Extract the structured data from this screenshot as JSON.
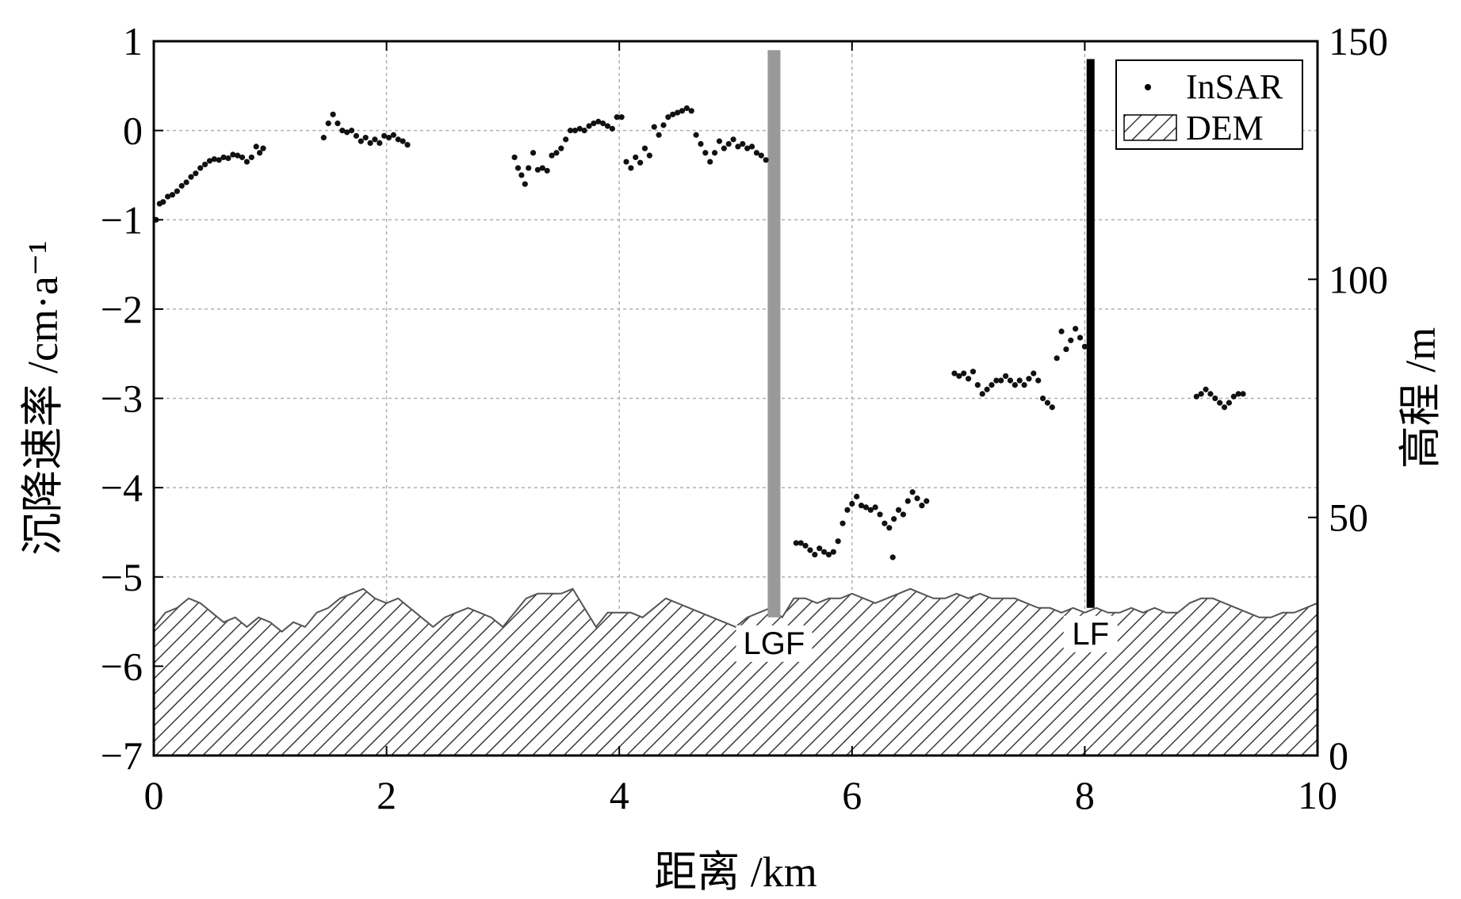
{
  "chart_data": {
    "type": "scatter",
    "xlabel": "距离 /km",
    "ylabel_left": "沉降速率 /cm·a⁻¹",
    "ylabel_right": "高程 /m",
    "xlim": [
      0,
      10
    ],
    "ylim_left": [
      -7,
      1
    ],
    "ylim_right": [
      0,
      150
    ],
    "x_ticks": [
      "0",
      "2",
      "4",
      "6",
      "8",
      "10"
    ],
    "y_left_ticks": [
      "1",
      "0",
      "−1",
      "−2",
      "−3",
      "−4",
      "−5",
      "−6",
      "−7"
    ],
    "y_right_ticks": [
      "150",
      "100",
      "50",
      "0"
    ],
    "grid": true,
    "legend": {
      "position": "top-right",
      "entries": [
        "InSAR",
        "DEM"
      ]
    },
    "faults": [
      {
        "label": "LGF",
        "x": 5.33,
        "top": 0.9,
        "color": "#999999"
      },
      {
        "label": "LF",
        "x": 8.05,
        "top": 0.8,
        "color": "#000000"
      }
    ],
    "series": [
      {
        "name": "InSAR",
        "type": "scatter",
        "points": [
          [
            0.02,
            -1.0
          ],
          [
            0.05,
            -0.82
          ],
          [
            0.08,
            -0.8
          ],
          [
            0.12,
            -0.74
          ],
          [
            0.16,
            -0.72
          ],
          [
            0.2,
            -0.68
          ],
          [
            0.24,
            -0.62
          ],
          [
            0.28,
            -0.58
          ],
          [
            0.32,
            -0.52
          ],
          [
            0.36,
            -0.48
          ],
          [
            0.4,
            -0.42
          ],
          [
            0.44,
            -0.38
          ],
          [
            0.48,
            -0.34
          ],
          [
            0.52,
            -0.32
          ],
          [
            0.56,
            -0.33
          ],
          [
            0.6,
            -0.3
          ],
          [
            0.64,
            -0.31
          ],
          [
            0.68,
            -0.27
          ],
          [
            0.72,
            -0.28
          ],
          [
            0.76,
            -0.3
          ],
          [
            0.8,
            -0.35
          ],
          [
            0.84,
            -0.3
          ],
          [
            0.88,
            -0.18
          ],
          [
            0.91,
            -0.25
          ],
          [
            0.94,
            -0.2
          ],
          [
            1.46,
            -0.08
          ],
          [
            1.5,
            0.08
          ],
          [
            1.54,
            0.18
          ],
          [
            1.58,
            0.08
          ],
          [
            1.62,
            0.0
          ],
          [
            1.66,
            -0.02
          ],
          [
            1.7,
            0.0
          ],
          [
            1.74,
            -0.06
          ],
          [
            1.78,
            -0.12
          ],
          [
            1.82,
            -0.08
          ],
          [
            1.86,
            -0.14
          ],
          [
            1.9,
            -0.1
          ],
          [
            1.94,
            -0.14
          ],
          [
            1.98,
            -0.06
          ],
          [
            2.02,
            -0.08
          ],
          [
            2.06,
            -0.05
          ],
          [
            2.1,
            -0.1
          ],
          [
            2.14,
            -0.12
          ],
          [
            2.18,
            -0.16
          ],
          [
            3.1,
            -0.3
          ],
          [
            3.13,
            -0.42
          ],
          [
            3.16,
            -0.5
          ],
          [
            3.19,
            -0.6
          ],
          [
            3.22,
            -0.42
          ],
          [
            3.26,
            -0.25
          ],
          [
            3.3,
            -0.44
          ],
          [
            3.34,
            -0.42
          ],
          [
            3.38,
            -0.45
          ],
          [
            3.42,
            -0.28
          ],
          [
            3.46,
            -0.25
          ],
          [
            3.5,
            -0.2
          ],
          [
            3.54,
            -0.1
          ],
          [
            3.58,
            0.0
          ],
          [
            3.62,
            0.0
          ],
          [
            3.66,
            0.02
          ],
          [
            3.7,
            0.0
          ],
          [
            3.74,
            0.05
          ],
          [
            3.78,
            0.08
          ],
          [
            3.82,
            0.1
          ],
          [
            3.86,
            0.08
          ],
          [
            3.9,
            0.05
          ],
          [
            3.94,
            0.02
          ],
          [
            3.98,
            0.15
          ],
          [
            4.02,
            0.15
          ],
          [
            4.06,
            -0.35
          ],
          [
            4.1,
            -0.42
          ],
          [
            4.14,
            -0.3
          ],
          [
            4.18,
            -0.36
          ],
          [
            4.22,
            -0.2
          ],
          [
            4.26,
            -0.28
          ],
          [
            4.3,
            0.04
          ],
          [
            4.34,
            -0.05
          ],
          [
            4.38,
            0.06
          ],
          [
            4.42,
            0.15
          ],
          [
            4.46,
            0.18
          ],
          [
            4.5,
            0.2
          ],
          [
            4.54,
            0.22
          ],
          [
            4.58,
            0.25
          ],
          [
            4.62,
            0.22
          ],
          [
            4.66,
            -0.05
          ],
          [
            4.7,
            -0.15
          ],
          [
            4.74,
            -0.25
          ],
          [
            4.78,
            -0.35
          ],
          [
            4.82,
            -0.25
          ],
          [
            4.86,
            -0.12
          ],
          [
            4.9,
            -0.2
          ],
          [
            4.94,
            -0.15
          ],
          [
            4.98,
            -0.1
          ],
          [
            5.02,
            -0.18
          ],
          [
            5.06,
            -0.15
          ],
          [
            5.1,
            -0.2
          ],
          [
            5.14,
            -0.18
          ],
          [
            5.18,
            -0.25
          ],
          [
            5.22,
            -0.28
          ],
          [
            5.26,
            -0.33
          ],
          [
            5.52,
            -4.62
          ],
          [
            5.56,
            -4.62
          ],
          [
            5.6,
            -4.65
          ],
          [
            5.64,
            -4.7
          ],
          [
            5.68,
            -4.75
          ],
          [
            5.72,
            -4.68
          ],
          [
            5.76,
            -4.72
          ],
          [
            5.8,
            -4.75
          ],
          [
            5.84,
            -4.72
          ],
          [
            5.88,
            -4.6
          ],
          [
            5.92,
            -4.4
          ],
          [
            5.96,
            -4.25
          ],
          [
            6.0,
            -4.18
          ],
          [
            6.04,
            -4.1
          ],
          [
            6.08,
            -4.2
          ],
          [
            6.12,
            -4.22
          ],
          [
            6.16,
            -4.25
          ],
          [
            6.2,
            -4.22
          ],
          [
            6.24,
            -4.3
          ],
          [
            6.28,
            -4.4
          ],
          [
            6.32,
            -4.45
          ],
          [
            6.36,
            -4.35
          ],
          [
            6.4,
            -4.25
          ],
          [
            6.44,
            -4.3
          ],
          [
            6.48,
            -4.15
          ],
          [
            6.52,
            -4.05
          ],
          [
            6.56,
            -4.12
          ],
          [
            6.6,
            -4.2
          ],
          [
            6.64,
            -4.15
          ],
          [
            6.35,
            -4.78
          ],
          [
            6.88,
            -2.72
          ],
          [
            6.92,
            -2.75
          ],
          [
            6.96,
            -2.72
          ],
          [
            7.0,
            -2.78
          ],
          [
            7.04,
            -2.7
          ],
          [
            7.08,
            -2.85
          ],
          [
            7.12,
            -2.95
          ],
          [
            7.16,
            -2.9
          ],
          [
            7.2,
            -2.85
          ],
          [
            7.24,
            -2.8
          ],
          [
            7.28,
            -2.8
          ],
          [
            7.32,
            -2.75
          ],
          [
            7.36,
            -2.8
          ],
          [
            7.4,
            -2.85
          ],
          [
            7.44,
            -2.8
          ],
          [
            7.48,
            -2.85
          ],
          [
            7.52,
            -2.78
          ],
          [
            7.56,
            -2.72
          ],
          [
            7.6,
            -2.8
          ],
          [
            7.64,
            -3.0
          ],
          [
            7.68,
            -3.05
          ],
          [
            7.72,
            -3.1
          ],
          [
            7.76,
            -2.55
          ],
          [
            7.8,
            -2.25
          ],
          [
            7.84,
            -2.45
          ],
          [
            7.88,
            -2.35
          ],
          [
            7.92,
            -2.22
          ],
          [
            7.96,
            -2.32
          ],
          [
            8.0,
            -2.42
          ],
          [
            8.96,
            -2.98
          ],
          [
            9.0,
            -2.95
          ],
          [
            9.04,
            -2.9
          ],
          [
            9.08,
            -2.95
          ],
          [
            9.12,
            -3.0
          ],
          [
            9.16,
            -3.05
          ],
          [
            9.2,
            -3.1
          ],
          [
            9.24,
            -3.05
          ],
          [
            9.28,
            -2.98
          ],
          [
            9.32,
            -2.95
          ],
          [
            9.36,
            -2.95
          ]
        ]
      },
      {
        "name": "DEM",
        "type": "area",
        "axis": "right",
        "x": [
          0,
          0.1,
          0.2,
          0.3,
          0.4,
          0.5,
          0.6,
          0.7,
          0.8,
          0.9,
          1.0,
          1.1,
          1.2,
          1.3,
          1.4,
          1.5,
          1.6,
          1.7,
          1.8,
          1.9,
          2.0,
          2.1,
          2.2,
          2.3,
          2.4,
          2.5,
          2.6,
          2.7,
          2.8,
          2.9,
          3.0,
          3.1,
          3.2,
          3.3,
          3.4,
          3.5,
          3.6,
          3.7,
          3.8,
          3.9,
          4.0,
          4.1,
          4.2,
          4.3,
          4.4,
          4.5,
          4.6,
          4.7,
          4.8,
          4.9,
          5.0,
          5.1,
          5.2,
          5.3,
          5.4,
          5.5,
          5.6,
          5.7,
          5.8,
          5.9,
          6.0,
          6.1,
          6.2,
          6.3,
          6.4,
          6.5,
          6.6,
          6.7,
          6.8,
          6.9,
          7.0,
          7.1,
          7.2,
          7.3,
          7.4,
          7.5,
          7.6,
          7.7,
          7.8,
          7.9,
          8.0,
          8.1,
          8.2,
          8.3,
          8.4,
          8.5,
          8.6,
          8.7,
          8.8,
          8.9,
          9.0,
          9.1,
          9.2,
          9.3,
          9.4,
          9.5,
          9.6,
          9.7,
          9.8,
          9.9,
          10.0
        ],
        "values": [
          27,
          30,
          31,
          33,
          32,
          30,
          28,
          29,
          27,
          29,
          28,
          26,
          28,
          27,
          30,
          31,
          33,
          34,
          35,
          33,
          32,
          33,
          31,
          29,
          27,
          29,
          30,
          31,
          30,
          29,
          27,
          30,
          33,
          34,
          34,
          34,
          35,
          31,
          27,
          30,
          30,
          30,
          29,
          31,
          33,
          32,
          31,
          30,
          29,
          28,
          27,
          29,
          30,
          31,
          29,
          33,
          33,
          32,
          33,
          33,
          34,
          33,
          32,
          33,
          34,
          35,
          34,
          33,
          33,
          34,
          33,
          34,
          33,
          33,
          33,
          32,
          31,
          31,
          30,
          31,
          30,
          31,
          30,
          30,
          31,
          30,
          31,
          30,
          30,
          32,
          33,
          33,
          32,
          31,
          30,
          29,
          29,
          30,
          30,
          31,
          32
        ]
      }
    ]
  }
}
